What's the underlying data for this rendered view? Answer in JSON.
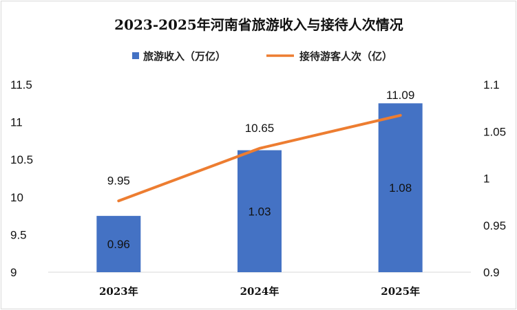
{
  "chart_data": {
    "type": "bar",
    "title": "2023-2025年河南省旅游收入与接待人次情况",
    "categories": [
      "2023年",
      "2024年",
      "2025年"
    ],
    "series": [
      {
        "name": "旅游收入（万亿）",
        "type": "bar",
        "axis": "right",
        "values": [
          0.96,
          1.03,
          1.08
        ],
        "labels": [
          "0.96",
          "1.03",
          "1.08"
        ],
        "color": "#4472C4"
      },
      {
        "name": "接待游客人次（亿）",
        "type": "line",
        "axis": "left",
        "values": [
          9.95,
          10.65,
          11.09
        ],
        "labels": [
          "9.95",
          "10.65",
          "11.09"
        ],
        "color": "#ED7D31"
      }
    ],
    "y_left": {
      "min": 9,
      "max": 11.5,
      "ticks": [
        "9",
        "9.5",
        "10",
        "10.5",
        "11",
        "11.5"
      ]
    },
    "y_right": {
      "min": 0.9,
      "max": 1.1,
      "ticks": [
        "0.9",
        "0.95",
        "1",
        "1.05",
        "1.1"
      ]
    },
    "legend_position": "top",
    "grid": false
  }
}
